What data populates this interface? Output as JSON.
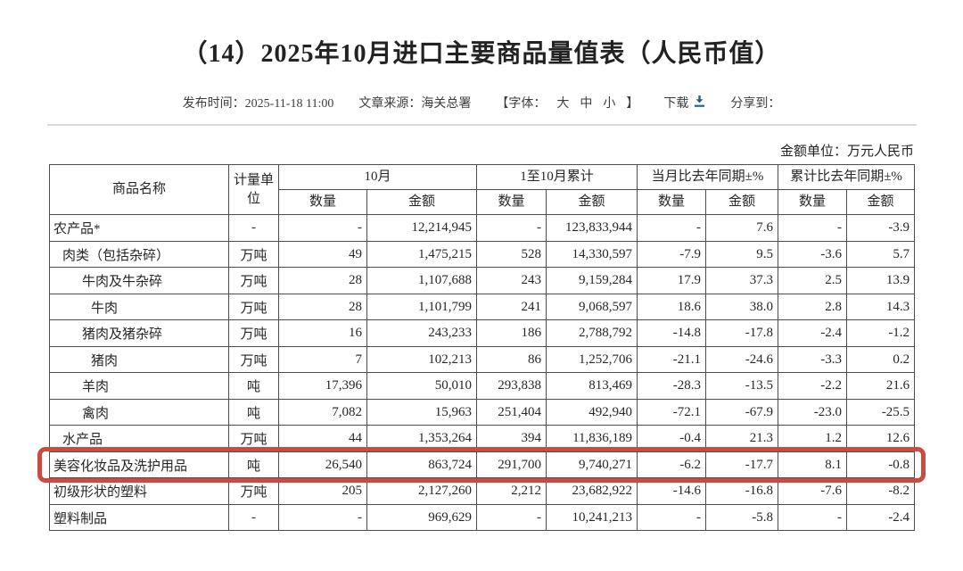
{
  "page": {
    "title": "（14）2025年10月进口主要商品量值表（人民币值）",
    "unit_note": "金额单位：万元人民币"
  },
  "meta": {
    "publish": "发布时间：2025-11-18 11:00",
    "source": "文章来源：海关总署",
    "font_prefix": "【字体：",
    "font_sizes": [
      "大",
      "中",
      "小"
    ],
    "font_suffix": "】",
    "download_label": "下载",
    "share_label": "分享到："
  },
  "table": {
    "header": {
      "commodity": "商品名称",
      "unit": "计量单位",
      "october": "10月",
      "cumulative": "1至10月累计",
      "month_yoy": "当月比去年同期±%",
      "cum_yoy": "累计比去年同期±%",
      "qty": "数量",
      "amount": "金额"
    },
    "rows": [
      {
        "name": "农产品*",
        "indent": 0,
        "unit": "-",
        "cells": [
          "-",
          "12,214,945",
          "-",
          "123,833,944",
          "-",
          "7.6",
          "-",
          "-3.9"
        ],
        "highlight": false
      },
      {
        "name": "肉类（包括杂碎）",
        "indent": 1,
        "unit": "万吨",
        "cells": [
          "49",
          "1,475,215",
          "528",
          "14,330,597",
          "-7.9",
          "9.5",
          "-3.6",
          "5.7"
        ],
        "highlight": false
      },
      {
        "name": "牛肉及牛杂碎",
        "indent": 2,
        "unit": "万吨",
        "cells": [
          "28",
          "1,107,688",
          "243",
          "9,159,284",
          "17.9",
          "37.3",
          "2.5",
          "13.9"
        ],
        "highlight": false
      },
      {
        "name": "牛肉",
        "indent": 3,
        "unit": "万吨",
        "cells": [
          "28",
          "1,101,799",
          "241",
          "9,068,597",
          "18.6",
          "38.0",
          "2.8",
          "14.3"
        ],
        "highlight": false
      },
      {
        "name": "猪肉及猪杂碎",
        "indent": 2,
        "unit": "万吨",
        "cells": [
          "16",
          "243,233",
          "186",
          "2,788,792",
          "-14.8",
          "-17.8",
          "-2.4",
          "-1.2"
        ],
        "highlight": false
      },
      {
        "name": "猪肉",
        "indent": 3,
        "unit": "万吨",
        "cells": [
          "7",
          "102,213",
          "86",
          "1,252,706",
          "-21.1",
          "-24.6",
          "-3.3",
          "0.2"
        ],
        "highlight": false
      },
      {
        "name": "羊肉",
        "indent": 2,
        "unit": "吨",
        "cells": [
          "17,396",
          "50,010",
          "293,838",
          "813,469",
          "-28.3",
          "-13.5",
          "-2.2",
          "21.6"
        ],
        "highlight": false
      },
      {
        "name": "禽肉",
        "indent": 2,
        "unit": "吨",
        "cells": [
          "7,082",
          "15,963",
          "251,404",
          "492,940",
          "-72.1",
          "-67.9",
          "-23.0",
          "-25.5"
        ],
        "highlight": false
      },
      {
        "name": "水产品",
        "indent": 1,
        "unit": "万吨",
        "cells": [
          "44",
          "1,353,264",
          "394",
          "11,836,189",
          "-0.4",
          "21.3",
          "1.2",
          "12.6"
        ],
        "highlight": false
      },
      {
        "name": "美容化妆品及洗护用品",
        "indent": 0,
        "unit": "吨",
        "cells": [
          "26,540",
          "863,724",
          "291,700",
          "9,740,271",
          "-6.2",
          "-17.7",
          "8.1",
          "-0.8"
        ],
        "highlight": true
      },
      {
        "name": "初级形状的塑料",
        "indent": 0,
        "unit": "万吨",
        "cells": [
          "205",
          "2,127,260",
          "2,212",
          "23,682,922",
          "-14.6",
          "-16.8",
          "-7.6",
          "-8.2"
        ],
        "highlight": false
      },
      {
        "name": "塑料制品",
        "indent": 0,
        "unit": "-",
        "cells": [
          "-",
          "969,629",
          "-",
          "10,241,213",
          "-",
          "-5.8",
          "-",
          "-2.4"
        ],
        "highlight": false
      }
    ]
  },
  "colors": {
    "highlight_border": "#cc4b41",
    "download_icon_blue": "#1c5fa5",
    "table_border": "#4d4d4d"
  }
}
